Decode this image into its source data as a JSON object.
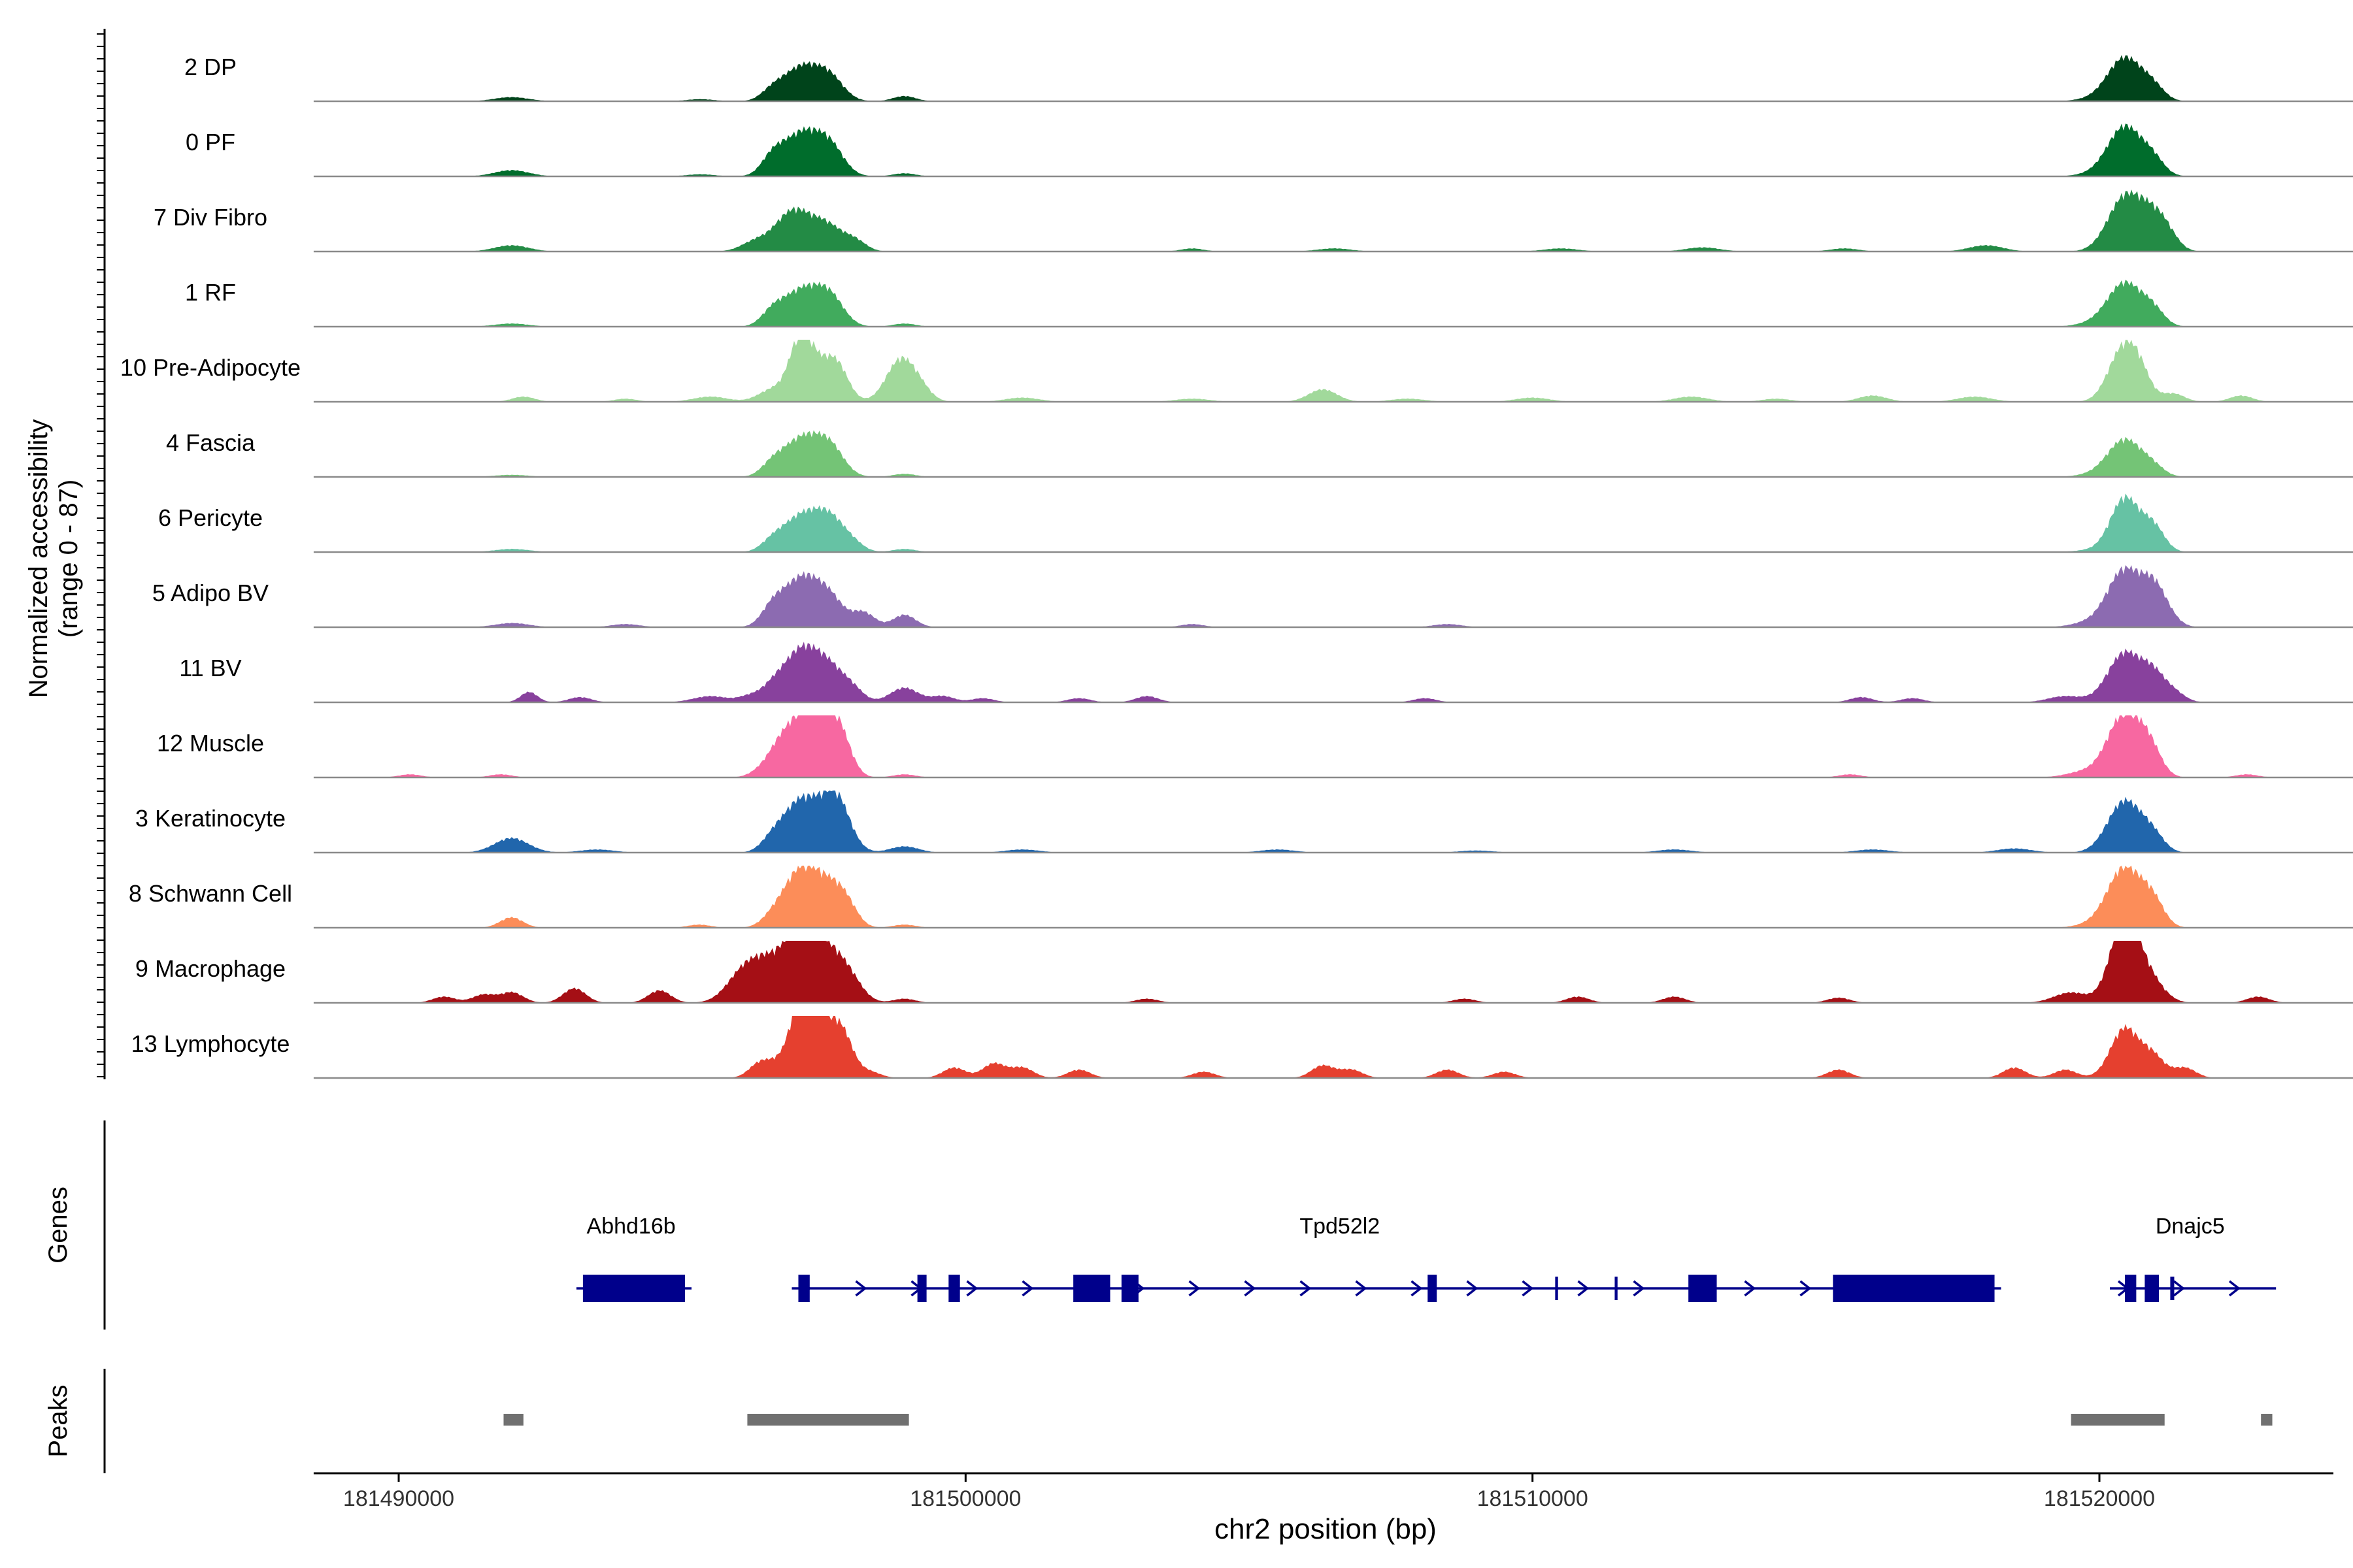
{
  "chart_data": {
    "type": "area",
    "title": "",
    "ylabel_line1": "Normalized accessibility",
    "ylabel_line2": "(range 0 - 87)",
    "xlabel": "chr2 position (bp)",
    "xlim": [
      181488500,
      181524600
    ],
    "y_range": [
      0,
      87
    ],
    "x_ticks": [
      181490000,
      181500000,
      181510000,
      181520000
    ],
    "x_tick_labels": [
      "181490000",
      "181500000",
      "181510000",
      "181520000"
    ],
    "tracks": [
      {
        "name": "2 DP",
        "color": "#00441b",
        "peaks": [
          [
            181491990,
            300,
            4
          ],
          [
            181495320,
            250,
            2
          ],
          [
            181496600,
            200,
            10
          ],
          [
            181497100,
            300,
            32
          ],
          [
            181497600,
            250,
            22
          ],
          [
            181498920,
            200,
            5
          ],
          [
            181520450,
            300,
            42
          ],
          [
            181520950,
            200,
            12
          ],
          [
            181519900,
            300,
            2
          ]
        ]
      },
      {
        "name": "0 PF",
        "color": "#006d2c",
        "peaks": [
          [
            181491990,
            300,
            6
          ],
          [
            181495320,
            250,
            2
          ],
          [
            181496600,
            200,
            18
          ],
          [
            181497100,
            300,
            40
          ],
          [
            181497600,
            250,
            28
          ],
          [
            181498920,
            200,
            3
          ],
          [
            181520450,
            300,
            48
          ],
          [
            181520950,
            200,
            14
          ],
          [
            181519900,
            300,
            2
          ]
        ]
      },
      {
        "name": "7 Div Fibro",
        "color": "#238b45",
        "peaks": [
          [
            181491990,
            300,
            6
          ],
          [
            181496300,
            250,
            10
          ],
          [
            181496800,
            250,
            16
          ],
          [
            181497100,
            300,
            30
          ],
          [
            181497600,
            250,
            20
          ],
          [
            181498050,
            200,
            10
          ],
          [
            181504000,
            200,
            3
          ],
          [
            181506500,
            300,
            3
          ],
          [
            181510500,
            300,
            3
          ],
          [
            181513000,
            300,
            4
          ],
          [
            181515500,
            250,
            3
          ],
          [
            181518000,
            300,
            6
          ],
          [
            181520450,
            300,
            52
          ],
          [
            181520950,
            250,
            28
          ],
          [
            181521200,
            200,
            10
          ]
        ]
      },
      {
        "name": "1 RF",
        "color": "#41ab5d",
        "peaks": [
          [
            181491990,
            300,
            3
          ],
          [
            181496600,
            200,
            14
          ],
          [
            181497100,
            300,
            34
          ],
          [
            181497600,
            250,
            28
          ],
          [
            181498920,
            200,
            3
          ],
          [
            181520450,
            300,
            42
          ],
          [
            181520950,
            200,
            14
          ],
          [
            181519900,
            300,
            3
          ]
        ]
      },
      {
        "name": "10 Pre-Adipocyte",
        "color": "#a1d99b",
        "peaks": [
          [
            181492200,
            200,
            5
          ],
          [
            181494000,
            200,
            3
          ],
          [
            181495500,
            300,
            5
          ],
          [
            181496600,
            250,
            12
          ],
          [
            181497100,
            200,
            60
          ],
          [
            181497500,
            250,
            26
          ],
          [
            181497750,
            200,
            24
          ],
          [
            181498850,
            250,
            40
          ],
          [
            181499200,
            200,
            10
          ],
          [
            181501000,
            300,
            4
          ],
          [
            181504000,
            300,
            3
          ],
          [
            181506300,
            250,
            12
          ],
          [
            181507800,
            300,
            3
          ],
          [
            181510000,
            300,
            4
          ],
          [
            181512800,
            300,
            5
          ],
          [
            181514300,
            250,
            3
          ],
          [
            181516000,
            250,
            6
          ],
          [
            181517800,
            300,
            5
          ],
          [
            181520400,
            250,
            48
          ],
          [
            181520700,
            200,
            24
          ],
          [
            181521300,
            200,
            8
          ],
          [
            181522500,
            200,
            6
          ]
        ]
      },
      {
        "name": "4 Fascia",
        "color": "#74c476",
        "peaks": [
          [
            181491990,
            300,
            2
          ],
          [
            181496600,
            200,
            12
          ],
          [
            181497100,
            300,
            36
          ],
          [
            181497600,
            250,
            28
          ],
          [
            181498920,
            200,
            3
          ],
          [
            181520450,
            300,
            36
          ],
          [
            181520950,
            200,
            8
          ],
          [
            181519900,
            300,
            2
          ]
        ]
      },
      {
        "name": "6 Pericyte",
        "color": "#66c2a4",
        "peaks": [
          [
            181492000,
            300,
            3
          ],
          [
            181496600,
            200,
            10
          ],
          [
            181497100,
            300,
            34
          ],
          [
            181497600,
            250,
            30
          ],
          [
            181498000,
            200,
            8
          ],
          [
            181498920,
            200,
            3
          ],
          [
            181520450,
            250,
            52
          ],
          [
            181520950,
            200,
            24
          ],
          [
            181519900,
            300,
            2
          ]
        ]
      },
      {
        "name": "5 Adipo BV",
        "color": "#8c6bb1",
        "peaks": [
          [
            181492000,
            300,
            4
          ],
          [
            181494000,
            250,
            3
          ],
          [
            181496600,
            200,
            18
          ],
          [
            181497100,
            300,
            46
          ],
          [
            181497600,
            250,
            26
          ],
          [
            181498200,
            200,
            14
          ],
          [
            181498920,
            200,
            12
          ],
          [
            181504000,
            200,
            3
          ],
          [
            181508500,
            250,
            3
          ],
          [
            181520450,
            300,
            56
          ],
          [
            181520950,
            200,
            30
          ],
          [
            181521200,
            200,
            10
          ],
          [
            181519800,
            300,
            4
          ]
        ]
      },
      {
        "name": "11 BV",
        "color": "#88419d",
        "peaks": [
          [
            181492300,
            150,
            10
          ],
          [
            181493200,
            200,
            5
          ],
          [
            181495500,
            300,
            6
          ],
          [
            181496200,
            200,
            6
          ],
          [
            181496600,
            200,
            12
          ],
          [
            181497100,
            300,
            50
          ],
          [
            181497600,
            250,
            28
          ],
          [
            181498000,
            200,
            12
          ],
          [
            181498920,
            250,
            14
          ],
          [
            181499600,
            200,
            6
          ],
          [
            181500300,
            200,
            4
          ],
          [
            181502000,
            200,
            4
          ],
          [
            181503200,
            200,
            6
          ],
          [
            181508100,
            200,
            4
          ],
          [
            181515800,
            200,
            5
          ],
          [
            181516700,
            200,
            4
          ],
          [
            181519400,
            300,
            6
          ],
          [
            181520450,
            300,
            48
          ],
          [
            181520950,
            200,
            22
          ],
          [
            181521300,
            200,
            10
          ]
        ]
      },
      {
        "name": "12 Muscle",
        "color": "#f768a1",
        "peaks": [
          [
            181490200,
            200,
            3
          ],
          [
            181491800,
            200,
            3
          ],
          [
            181496400,
            200,
            6
          ],
          [
            181496700,
            200,
            16
          ],
          [
            181497100,
            300,
            52
          ],
          [
            181497500,
            250,
            42
          ],
          [
            181497800,
            200,
            30
          ],
          [
            181498920,
            200,
            3
          ],
          [
            181515600,
            200,
            3
          ],
          [
            181519700,
            300,
            5
          ],
          [
            181520450,
            300,
            62
          ],
          [
            181520900,
            200,
            22
          ],
          [
            181522600,
            200,
            3
          ]
        ]
      },
      {
        "name": "3 Keratinocyte",
        "color": "#2166ac",
        "peaks": [
          [
            181491990,
            300,
            14
          ],
          [
            181493500,
            300,
            3
          ],
          [
            181496600,
            200,
            12
          ],
          [
            181497100,
            300,
            50
          ],
          [
            181497700,
            250,
            54
          ],
          [
            181498920,
            250,
            6
          ],
          [
            181501000,
            300,
            3
          ],
          [
            181505500,
            300,
            3
          ],
          [
            181509000,
            300,
            2
          ],
          [
            181512500,
            300,
            3
          ],
          [
            181516000,
            300,
            3
          ],
          [
            181518500,
            300,
            4
          ],
          [
            181520450,
            300,
            50
          ],
          [
            181520950,
            200,
            14
          ]
        ]
      },
      {
        "name": "8 Schwann Cell",
        "color": "#fc8d59",
        "peaks": [
          [
            181491990,
            200,
            10
          ],
          [
            181495300,
            200,
            3
          ],
          [
            181496600,
            200,
            8
          ],
          [
            181497100,
            300,
            56
          ],
          [
            181497600,
            250,
            30
          ],
          [
            181497900,
            200,
            18
          ],
          [
            181498920,
            200,
            3
          ],
          [
            181520450,
            300,
            58
          ],
          [
            181520950,
            200,
            22
          ],
          [
            181519900,
            300,
            3
          ]
        ]
      },
      {
        "name": "9 Macrophage",
        "color": "#a50f15",
        "peaks": [
          [
            181490800,
            200,
            6
          ],
          [
            181491500,
            200,
            8
          ],
          [
            181492000,
            200,
            10
          ],
          [
            181493100,
            200,
            14
          ],
          [
            181494600,
            200,
            12
          ],
          [
            181496100,
            300,
            30
          ],
          [
            181496600,
            300,
            34
          ],
          [
            181497100,
            250,
            64
          ],
          [
            181497500,
            250,
            40
          ],
          [
            181497900,
            250,
            28
          ],
          [
            181498920,
            200,
            4
          ],
          [
            181503200,
            200,
            4
          ],
          [
            181508800,
            200,
            4
          ],
          [
            181510800,
            200,
            6
          ],
          [
            181512500,
            200,
            6
          ],
          [
            181515400,
            200,
            5
          ],
          [
            181519500,
            300,
            10
          ],
          [
            181520450,
            250,
            82
          ],
          [
            181520900,
            250,
            20
          ],
          [
            181522800,
            200,
            6
          ]
        ]
      },
      {
        "name": "13 Lymphocyte",
        "color": "#e5402f",
        "peaks": [
          [
            181496400,
            200,
            16
          ],
          [
            181496700,
            150,
            8
          ],
          [
            181497100,
            200,
            74
          ],
          [
            181497400,
            200,
            50
          ],
          [
            181497800,
            200,
            46
          ],
          [
            181498300,
            200,
            6
          ],
          [
            181499800,
            200,
            10
          ],
          [
            181500500,
            200,
            14
          ],
          [
            181501000,
            200,
            10
          ],
          [
            181502000,
            200,
            8
          ],
          [
            181504200,
            200,
            6
          ],
          [
            181506300,
            200,
            12
          ],
          [
            181506800,
            200,
            8
          ],
          [
            181508500,
            200,
            8
          ],
          [
            181509500,
            200,
            6
          ],
          [
            181515400,
            200,
            8
          ],
          [
            181518500,
            200,
            10
          ],
          [
            181519400,
            200,
            8
          ],
          [
            181520450,
            250,
            48
          ],
          [
            181520950,
            200,
            20
          ],
          [
            181521500,
            200,
            10
          ]
        ]
      }
    ],
    "genes_label": "Genes",
    "peaks_label": "Peaks",
    "genes": [
      {
        "name": "Abhd16b",
        "start": 181493250,
        "end": 181495050,
        "label_pos": 181494100,
        "exons": [
          [
            181493250,
            181495050,
            "wide"
          ]
        ]
      },
      {
        "name": "Tpd52l2",
        "start": 181497050,
        "end": 181518150,
        "label_pos": 181506600,
        "exons": [
          [
            181497050,
            181497250,
            "wide"
          ],
          [
            181499150,
            181499300,
            "wide"
          ],
          [
            181499700,
            181499900,
            "wide"
          ],
          [
            181501900,
            181502550,
            "wide"
          ],
          [
            181502750,
            181503050,
            "wide"
          ],
          [
            181508150,
            181508250,
            "wide"
          ],
          [
            181510400,
            181510450,
            "thin"
          ],
          [
            181511450,
            181511500,
            "thin"
          ],
          [
            181512750,
            181513250,
            "wide"
          ],
          [
            181515300,
            181518150,
            "wide"
          ]
        ]
      },
      {
        "name": "Dnajc5",
        "start": 181520300,
        "end": 181523000,
        "label_pos": 181521600,
        "exons": [
          [
            181520450,
            181520650,
            "wide"
          ],
          [
            181520800,
            181521050,
            "wide"
          ],
          [
            181521250,
            181521320,
            "thin"
          ]
        ]
      }
    ],
    "peak_regions": [
      [
        181491850,
        181492200
      ],
      [
        181496150,
        181499000
      ],
      [
        181519500,
        181521150
      ],
      [
        181522850,
        181523050
      ]
    ],
    "gene_color": "#00008b",
    "peak_color": "#707070"
  }
}
